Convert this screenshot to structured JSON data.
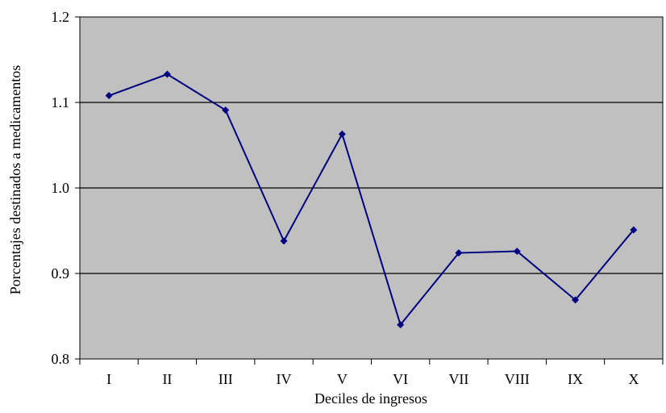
{
  "chart_data": {
    "type": "line",
    "title": "",
    "xlabel": "Deciles de ingresos",
    "ylabel": "Porcentajes destinados a medicamentos",
    "ylim": [
      0.8,
      1.2
    ],
    "yticks": [
      "0.8",
      "0.9",
      "1.0",
      "1.1",
      "1.2"
    ],
    "categories": [
      "I",
      "II",
      "III",
      "IV",
      "V",
      "VI",
      "VII",
      "VIII",
      "IX",
      "X"
    ],
    "series": [
      {
        "values": [
          1.108,
          1.133,
          1.091,
          0.938,
          1.063,
          0.84,
          0.924,
          0.926,
          0.869,
          0.951
        ]
      }
    ],
    "grid": true,
    "colors": {
      "plot_background": "#c0c0c0",
      "line": "#000080",
      "gridline": "#000000"
    }
  }
}
